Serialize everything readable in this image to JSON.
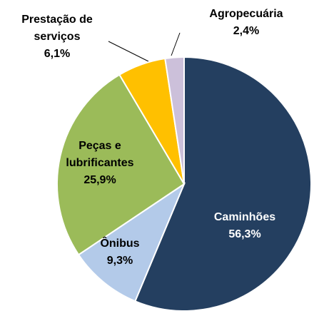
{
  "chart_data": {
    "type": "pie",
    "categories": [
      "Caminhões",
      "Ônibus",
      "Peças e lubrificantes",
      "Prestação de serviços",
      "Agropecuária"
    ],
    "values": [
      56.3,
      9.3,
      25.9,
      6.1,
      2.4
    ],
    "value_labels": [
      "56,3%",
      "9,3%",
      "25,9%",
      "6,1%",
      "2,4%"
    ],
    "colors": [
      "#243f60",
      "#b3cae9",
      "#9bbb59",
      "#ffc000",
      "#ccc0da"
    ]
  }
}
